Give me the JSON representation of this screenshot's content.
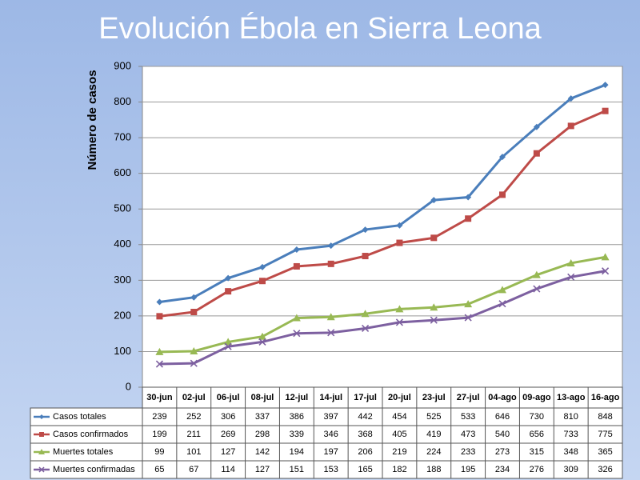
{
  "chart_data": {
    "type": "line",
    "title": "Evolución Ébola en Sierra Leona",
    "y_label": "Número de casos",
    "categories": [
      "30-jun",
      "02-jul",
      "06-jul",
      "08-jul",
      "12-jul",
      "14-jul",
      "17-jul",
      "20-jul",
      "23-jul",
      "27-jul",
      "04-ago",
      "09-ago",
      "13-ago",
      "16-ago"
    ],
    "series": [
      {
        "name": "Casos totales",
        "color": "#4a7ebb",
        "marker": "diamond",
        "values": [
          239,
          252,
          306,
          337,
          386,
          397,
          442,
          454,
          525,
          533,
          646,
          730,
          810,
          848
        ]
      },
      {
        "name": "Casos confirmados",
        "color": "#be4b48",
        "marker": "square",
        "values": [
          199,
          211,
          269,
          298,
          339,
          346,
          368,
          405,
          419,
          473,
          540,
          656,
          733,
          775
        ]
      },
      {
        "name": "Muertes totales",
        "color": "#98b954",
        "marker": "triangle",
        "values": [
          99,
          101,
          127,
          142,
          194,
          197,
          206,
          219,
          224,
          233,
          273,
          315,
          348,
          365
        ]
      },
      {
        "name": "Muertes confirmadas",
        "color": "#7d60a0",
        "marker": "x",
        "values": [
          65,
          67,
          114,
          127,
          151,
          153,
          165,
          182,
          188,
          195,
          234,
          276,
          309,
          326
        ]
      }
    ],
    "ylim": [
      0,
      900
    ],
    "yticks": [
      0,
      100,
      200,
      300,
      400,
      500,
      600,
      700,
      800,
      900
    ],
    "grid": true,
    "data_table": true
  }
}
